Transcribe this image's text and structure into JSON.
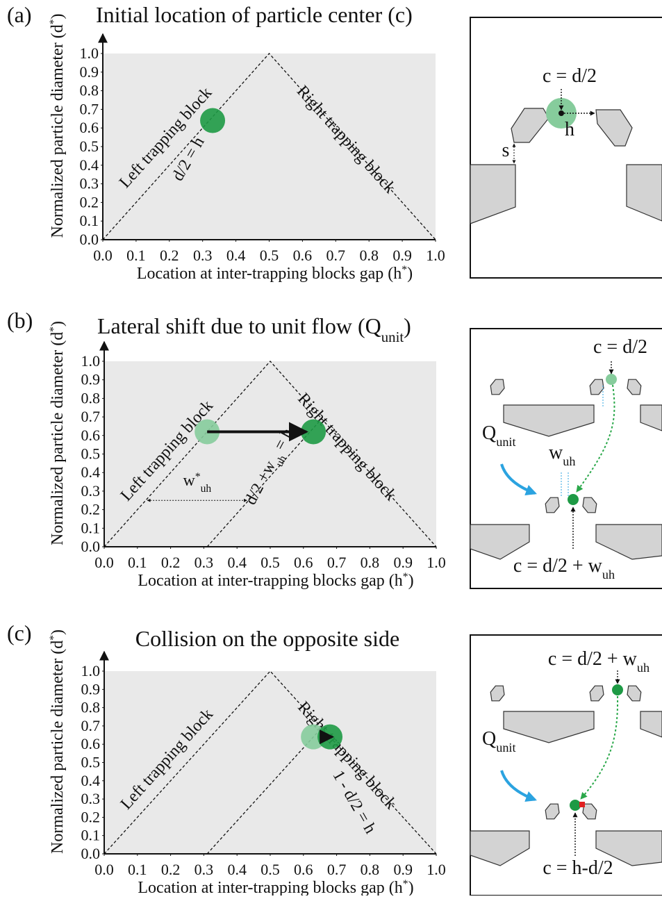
{
  "chart_data": [
    {
      "type": "scatter",
      "label": "(a)",
      "title": [
        "Initial location of particle center (c)"
      ],
      "x_label": [
        "Location at inter-trapping blocks gap (h",
        "*",
        ")"
      ],
      "y_label": [
        "Normalized particle diameter (d",
        "*",
        ")"
      ],
      "xlim": [
        0,
        1
      ],
      "ylim": [
        0,
        1
      ],
      "xticks": [
        {
          "value": 0,
          "label": "0.0"
        },
        0.1,
        0.2,
        0.3,
        0.4,
        0.5,
        0.6,
        0.7,
        0.8,
        0.9,
        {
          "value": 1,
          "label": "1.0"
        }
      ],
      "yticks": [
        {
          "value": 0,
          "label": "0.0"
        },
        0.1,
        0.2,
        0.3,
        0.4,
        0.5,
        0.6,
        0.7,
        0.8,
        0.9,
        {
          "value": 1,
          "label": "1.0"
        }
      ],
      "lines": [
        {
          "x": [
            0,
            0.5,
            1
          ],
          "y": [
            0,
            1,
            0
          ]
        }
      ],
      "points": [
        {
          "x": 0.33,
          "y": 0.64,
          "color": "#1e9a45"
        }
      ],
      "annotations": [
        [
          "Left trapping block"
        ],
        [
          "Right trapping block"
        ],
        [
          "d/2 = h"
        ]
      ]
    },
    {
      "type": "scatter",
      "label": "(b)",
      "title": [
        "Lateral shift due to unit flow (Q",
        "unit",
        ")"
      ],
      "x_label": [
        "Location at inter-trapping blocks gap (h",
        "*",
        ")"
      ],
      "y_label": [
        "Normalized particle diameter (d",
        "*",
        ")"
      ],
      "xlim": [
        0,
        1
      ],
      "ylim": [
        0,
        1
      ],
      "xticks": [
        {
          "value": 0,
          "label": "0.0"
        },
        0.1,
        0.2,
        0.3,
        0.4,
        0.5,
        0.6,
        0.7,
        0.8,
        0.9,
        {
          "value": 1,
          "label": "1.0"
        }
      ],
      "yticks": [
        {
          "value": 0,
          "label": "0.0"
        },
        0.1,
        0.2,
        0.3,
        0.4,
        0.5,
        0.6,
        0.7,
        0.8,
        0.9,
        {
          "value": 1,
          "label": "1.0"
        }
      ],
      "lines": [
        {
          "x": [
            0,
            0.5,
            1
          ],
          "y": [
            0,
            1,
            0
          ]
        },
        {
          "x": [
            0.31,
            0.655
          ],
          "y": [
            0,
            0.69
          ]
        }
      ],
      "points": [
        {
          "x": 0.31,
          "y": 0.62,
          "color": "#86cc9c"
        },
        {
          "x": 0.63,
          "y": 0.62,
          "color": "#1e9a45"
        }
      ],
      "span": {
        "x": [
          0.13,
          0.43
        ],
        "y": 0.25
      },
      "annotations": [
        [
          "Left trapping block"
        ],
        [
          "Right trapping block"
        ],
        [
          "d/2 +w",
          "uh",
          " = h"
        ],
        [
          "w",
          "*",
          "uh"
        ]
      ]
    },
    {
      "type": "scatter",
      "label": "(c)",
      "title": [
        "Collision on the opposite side"
      ],
      "x_label": [
        "Location at inter-trapping blocks gap (h",
        "*",
        ")"
      ],
      "y_label": [
        "Normalized particle diameter (d",
        "*",
        ")"
      ],
      "xlim": [
        0,
        1
      ],
      "ylim": [
        0,
        1
      ],
      "xticks": [
        {
          "value": 0,
          "label": "0.0"
        },
        0.1,
        0.2,
        0.3,
        0.4,
        0.5,
        0.6,
        0.7,
        0.8,
        0.9,
        {
          "value": 1,
          "label": "1.0"
        }
      ],
      "yticks": [
        {
          "value": 0,
          "label": "0.0"
        },
        0.1,
        0.2,
        0.3,
        0.4,
        0.5,
        0.6,
        0.7,
        0.8,
        0.9,
        {
          "value": 1,
          "label": "1.0"
        }
      ],
      "lines": [
        {
          "x": [
            0,
            0.5,
            1
          ],
          "y": [
            0,
            1,
            0
          ]
        },
        {
          "x": [
            0.31,
            0.655
          ],
          "y": [
            0,
            0.69
          ]
        }
      ],
      "points": [
        {
          "x": 0.63,
          "y": 0.64,
          "color": "#86cc9c"
        },
        {
          "x": 0.68,
          "y": 0.64,
          "color": "#1e9a45"
        }
      ],
      "annotations": [
        [
          "Left trapping block"
        ],
        [
          "Right trapping block"
        ],
        [
          "1 - d/2 = h"
        ]
      ]
    }
  ],
  "diagrams": [
    {
      "labels": [
        [
          "c = d/2"
        ],
        [
          "h"
        ],
        [
          "s"
        ]
      ]
    },
    {
      "labels": [
        [
          "c = d/2"
        ],
        [
          "Q",
          "unit"
        ],
        [
          "w",
          "uh"
        ],
        [
          "c = d/2 + w",
          "uh"
        ]
      ]
    },
    {
      "labels": [
        [
          "c = d/2 + w",
          "uh"
        ],
        [
          "Q",
          "unit"
        ],
        [
          "c = h-d/2"
        ]
      ]
    }
  ]
}
